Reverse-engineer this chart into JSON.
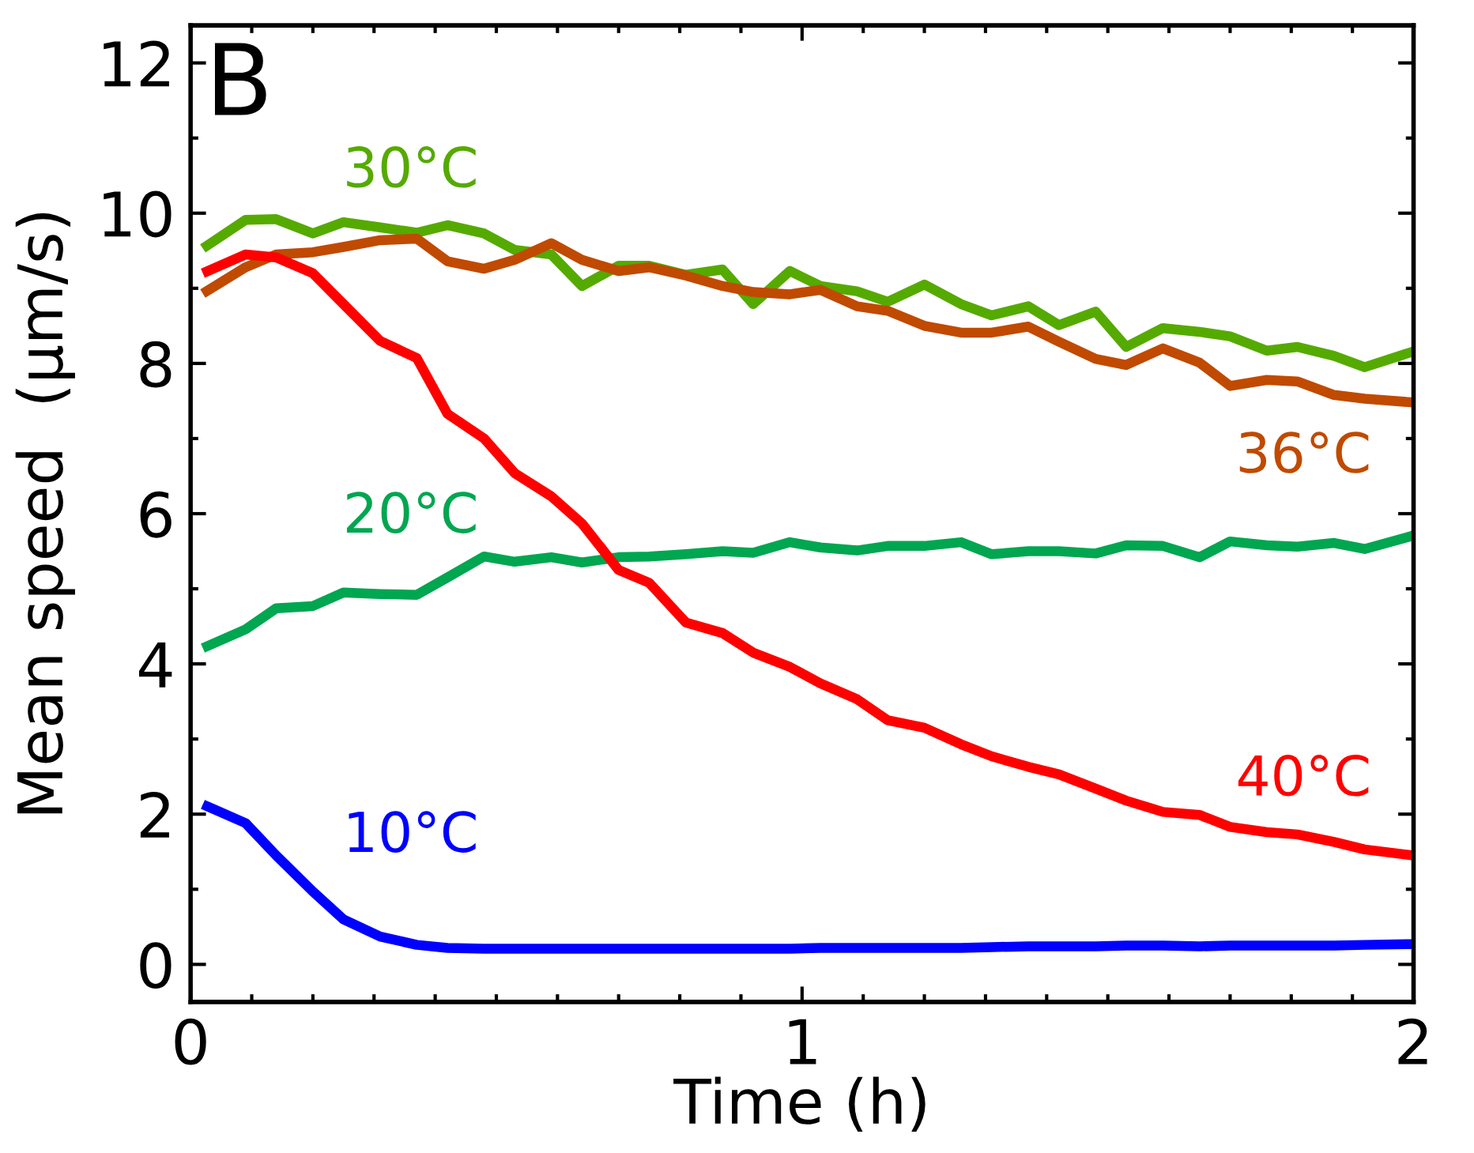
{
  "chart_data": {
    "type": "line",
    "xlabel": "Time (h)",
    "ylabel": "Mean speed  (μm/s)",
    "annotations": [
      "B"
    ],
    "xlim": [
      0,
      2
    ],
    "xticks": [
      0,
      1,
      2
    ],
    "ylim": [
      -0.5,
      12.5
    ],
    "yticks": [
      0,
      2,
      4,
      6,
      8,
      10,
      12
    ],
    "grid": false,
    "legend": false,
    "marker": "none",
    "line_style": "solid",
    "x": [
      0.02,
      0.09,
      0.14,
      0.2,
      0.25,
      0.31,
      0.37,
      0.42,
      0.48,
      0.53,
      0.59,
      0.64,
      0.7,
      0.75,
      0.81,
      0.87,
      0.92,
      0.98,
      1.03,
      1.09,
      1.14,
      1.2,
      1.26,
      1.31,
      1.37,
      1.42,
      1.48,
      1.53,
      1.59,
      1.65,
      1.7,
      1.76,
      1.81,
      1.87,
      1.92,
      2.0
    ],
    "series": [
      {
        "name": "30°C",
        "color": "#55aa00",
        "values": [
          9.53,
          9.91,
          9.92,
          9.73,
          9.88,
          9.81,
          9.74,
          9.84,
          9.73,
          9.51,
          9.45,
          9.03,
          9.3,
          9.3,
          9.18,
          9.25,
          8.79,
          9.23,
          9.03,
          8.96,
          8.82,
          9.05,
          8.79,
          8.64,
          8.76,
          8.51,
          8.69,
          8.22,
          8.47,
          8.42,
          8.36,
          8.17,
          8.22,
          8.1,
          7.95,
          8.16
        ]
      },
      {
        "name": "36°C",
        "color": "#c04a00",
        "values": [
          8.93,
          9.28,
          9.45,
          9.48,
          9.55,
          9.64,
          9.66,
          9.36,
          9.26,
          9.38,
          9.6,
          9.38,
          9.23,
          9.28,
          9.17,
          9.03,
          8.95,
          8.92,
          8.98,
          8.76,
          8.7,
          8.5,
          8.41,
          8.41,
          8.49,
          8.29,
          8.06,
          7.98,
          8.2,
          8.01,
          7.7,
          7.78,
          7.76,
          7.58,
          7.53,
          7.48
        ]
      },
      {
        "name": "20°C",
        "color": "#00a650",
        "values": [
          4.21,
          4.46,
          4.74,
          4.77,
          4.95,
          4.93,
          4.92,
          5.15,
          5.43,
          5.36,
          5.42,
          5.35,
          5.42,
          5.43,
          5.46,
          5.5,
          5.48,
          5.62,
          5.55,
          5.51,
          5.57,
          5.57,
          5.62,
          5.46,
          5.5,
          5.5,
          5.47,
          5.58,
          5.57,
          5.42,
          5.63,
          5.58,
          5.56,
          5.61,
          5.53,
          5.71
        ]
      },
      {
        "name": "40°C",
        "color": "#ff0000",
        "values": [
          9.2,
          9.45,
          9.41,
          9.2,
          8.79,
          8.3,
          8.07,
          7.33,
          7.0,
          6.54,
          6.23,
          5.87,
          5.25,
          5.08,
          4.55,
          4.41,
          4.15,
          3.96,
          3.74,
          3.53,
          3.25,
          3.15,
          2.93,
          2.77,
          2.63,
          2.53,
          2.34,
          2.18,
          2.03,
          1.99,
          1.83,
          1.76,
          1.73,
          1.63,
          1.53,
          1.45
        ]
      },
      {
        "name": "10°C",
        "color": "#0000ff",
        "values": [
          2.13,
          1.88,
          1.45,
          0.97,
          0.6,
          0.37,
          0.26,
          0.22,
          0.21,
          0.21,
          0.21,
          0.21,
          0.21,
          0.21,
          0.21,
          0.21,
          0.21,
          0.21,
          0.22,
          0.22,
          0.22,
          0.22,
          0.22,
          0.23,
          0.24,
          0.24,
          0.24,
          0.25,
          0.25,
          0.24,
          0.25,
          0.25,
          0.25,
          0.25,
          0.26,
          0.27
        ]
      }
    ]
  }
}
